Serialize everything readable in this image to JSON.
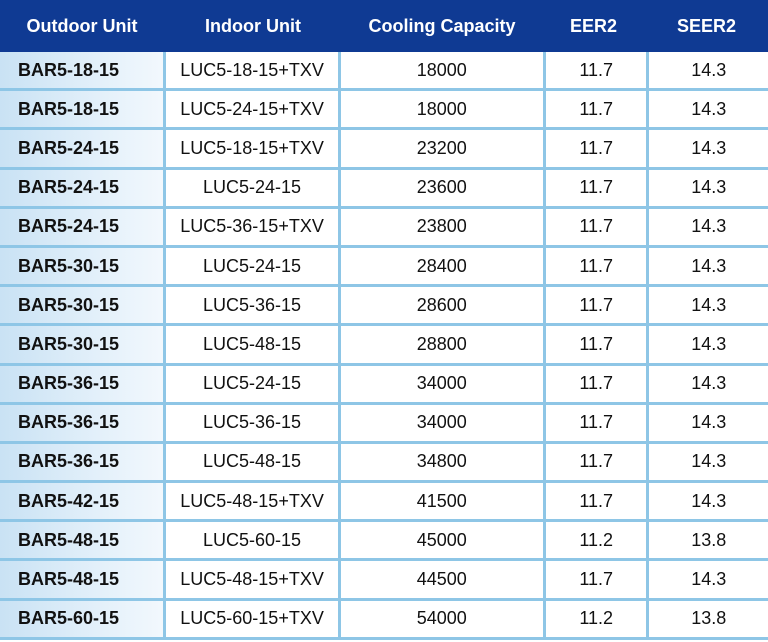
{
  "table": {
    "headers": [
      "Outdoor Unit",
      "Indoor Unit",
      "Cooling Capacity",
      "EER2",
      "SEER2"
    ],
    "rows": [
      [
        "BAR5-18-15",
        "LUC5-18-15+TXV",
        "18000",
        "11.7",
        "14.3"
      ],
      [
        "BAR5-18-15",
        "LUC5-24-15+TXV",
        "18000",
        "11.7",
        "14.3"
      ],
      [
        "BAR5-24-15",
        "LUC5-18-15+TXV",
        "23200",
        "11.7",
        "14.3"
      ],
      [
        "BAR5-24-15",
        "LUC5-24-15",
        "23600",
        "11.7",
        "14.3"
      ],
      [
        "BAR5-24-15",
        "LUC5-36-15+TXV",
        "23800",
        "11.7",
        "14.3"
      ],
      [
        "BAR5-30-15",
        "LUC5-24-15",
        "28400",
        "11.7",
        "14.3"
      ],
      [
        "BAR5-30-15",
        "LUC5-36-15",
        "28600",
        "11.7",
        "14.3"
      ],
      [
        "BAR5-30-15",
        "LUC5-48-15",
        "28800",
        "11.7",
        "14.3"
      ],
      [
        "BAR5-36-15",
        "LUC5-24-15",
        "34000",
        "11.7",
        "14.3"
      ],
      [
        "BAR5-36-15",
        "LUC5-36-15",
        "34000",
        "11.7",
        "14.3"
      ],
      [
        "BAR5-36-15",
        "LUC5-48-15",
        "34800",
        "11.7",
        "14.3"
      ],
      [
        "BAR5-42-15",
        "LUC5-48-15+TXV",
        "41500",
        "11.7",
        "14.3"
      ],
      [
        "BAR5-48-15",
        "LUC5-60-15",
        "45000",
        "11.2",
        "13.8"
      ],
      [
        "BAR5-48-15",
        "LUC5-48-15+TXV",
        "44500",
        "11.7",
        "14.3"
      ],
      [
        "BAR5-60-15",
        "LUC5-60-15+TXV",
        "54000",
        "11.2",
        "13.8"
      ]
    ]
  },
  "colors": {
    "header_bg": "#0f3a93",
    "header_text": "#ffffff",
    "grid_lines": "#8ec6e6",
    "first_column_bg": "#d6eaf8",
    "cell_bg": "#ffffff"
  }
}
